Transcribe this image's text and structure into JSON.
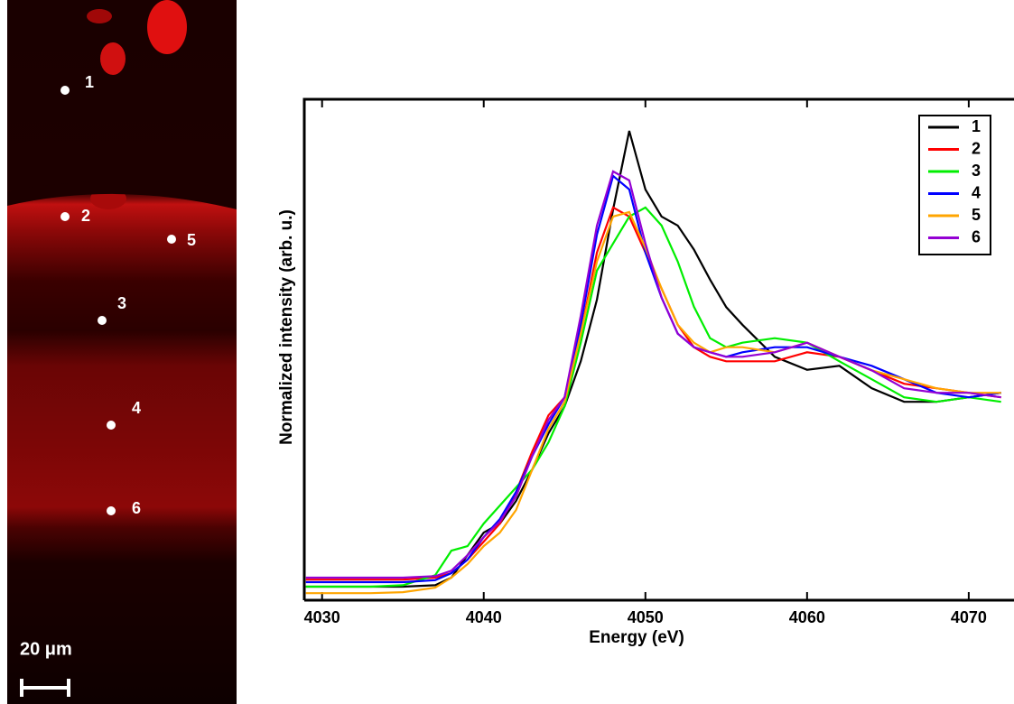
{
  "image_labels": {
    "points": [
      "1",
      "2",
      "3",
      "4",
      "5",
      "6"
    ],
    "scale_bar": "20 μm"
  },
  "chart_data": {
    "type": "line",
    "xlabel": "Energy (eV)",
    "ylabel": "Normalized intensity (arb. u.)",
    "xlim": [
      4028.9,
      4072.8
    ],
    "ylim": [
      0,
      1
    ],
    "xticks": [
      4030,
      4040,
      4050,
      4060,
      4070
    ],
    "legend": "upper right",
    "x": [
      4029,
      4031,
      4033,
      4035,
      4037,
      4038,
      4039,
      4040,
      4041,
      4042,
      4043,
      4044,
      4045,
      4046,
      4047,
      4048,
      4049,
      4050,
      4051,
      4052,
      4053,
      4054,
      4055,
      4056,
      4058,
      4060,
      4062,
      4064,
      4066,
      4068,
      4070,
      4072
    ],
    "series": [
      {
        "name": "1",
        "color": "#000000",
        "values": [
          0.027,
          0.027,
          0.027,
          0.027,
          0.03,
          0.045,
          0.09,
          0.135,
          0.153,
          0.198,
          0.261,
          0.333,
          0.387,
          0.477,
          0.6,
          0.78,
          0.937,
          0.82,
          0.766,
          0.748,
          0.7,
          0.64,
          0.585,
          0.55,
          0.486,
          0.46,
          0.468,
          0.423,
          0.396,
          0.396,
          0.405,
          0.414
        ]
      },
      {
        "name": "2",
        "color": "#ff0000",
        "values": [
          0.041,
          0.041,
          0.041,
          0.041,
          0.045,
          0.054,
          0.081,
          0.117,
          0.153,
          0.216,
          0.297,
          0.369,
          0.405,
          0.532,
          0.694,
          0.784,
          0.766,
          0.694,
          0.622,
          0.55,
          0.505,
          0.486,
          0.477,
          0.477,
          0.477,
          0.495,
          0.486,
          0.459,
          0.432,
          0.423,
          0.414,
          0.405
        ]
      },
      {
        "name": "3",
        "color": "#00ee00",
        "values": [
          0.027,
          0.027,
          0.027,
          0.03,
          0.05,
          0.099,
          0.108,
          0.153,
          0.189,
          0.225,
          0.261,
          0.315,
          0.387,
          0.514,
          0.658,
          0.712,
          0.766,
          0.784,
          0.748,
          0.676,
          0.586,
          0.523,
          0.505,
          0.514,
          0.523,
          0.514,
          0.477,
          0.441,
          0.405,
          0.396,
          0.405,
          0.396
        ]
      },
      {
        "name": "4",
        "color": "#0000ff",
        "values": [
          0.036,
          0.036,
          0.036,
          0.036,
          0.04,
          0.054,
          0.081,
          0.126,
          0.162,
          0.216,
          0.288,
          0.351,
          0.405,
          0.55,
          0.73,
          0.847,
          0.82,
          0.694,
          0.604,
          0.532,
          0.505,
          0.495,
          0.486,
          0.495,
          0.505,
          0.505,
          0.486,
          0.468,
          0.441,
          0.414,
          0.405,
          0.414
        ]
      },
      {
        "name": "5",
        "color": "#ffa500",
        "values": [
          0.014,
          0.014,
          0.014,
          0.016,
          0.025,
          0.045,
          0.072,
          0.108,
          0.135,
          0.18,
          0.261,
          0.342,
          0.396,
          0.532,
          0.676,
          0.766,
          0.775,
          0.703,
          0.622,
          0.55,
          0.514,
          0.495,
          0.505,
          0.505,
          0.495,
          0.514,
          0.486,
          0.459,
          0.441,
          0.423,
          0.414,
          0.414
        ]
      },
      {
        "name": "6",
        "color": "#9400d3",
        "values": [
          0.045,
          0.045,
          0.045,
          0.045,
          0.048,
          0.059,
          0.09,
          0.126,
          0.157,
          0.207,
          0.288,
          0.36,
          0.405,
          0.568,
          0.748,
          0.856,
          0.838,
          0.712,
          0.604,
          0.532,
          0.505,
          0.495,
          0.486,
          0.486,
          0.495,
          0.514,
          0.486,
          0.459,
          0.423,
          0.414,
          0.414,
          0.405
        ]
      }
    ]
  }
}
